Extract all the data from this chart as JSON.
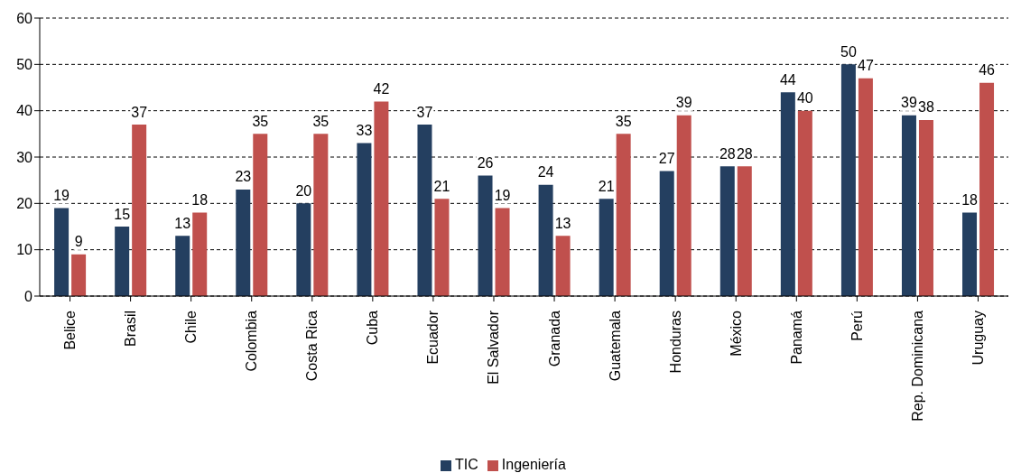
{
  "chart_data": {
    "type": "bar",
    "categories": [
      "Belice",
      "Brasil",
      "Chile",
      "Colombia",
      "Costa Rica",
      "Cuba",
      "Ecuador",
      "El Salvador",
      "Granada",
      "Guatemala",
      "Honduras",
      "México",
      "Panamá",
      "Perú",
      "Rep. Dominicana",
      "Uruguay"
    ],
    "series": [
      {
        "name": "TIC",
        "color": "#243f60",
        "values": [
          19,
          15,
          13,
          23,
          20,
          33,
          37,
          26,
          24,
          21,
          27,
          28,
          44,
          50,
          39,
          18
        ]
      },
      {
        "name": "Ingeniería",
        "color": "#c0504d",
        "values": [
          9,
          37,
          18,
          35,
          35,
          42,
          21,
          19,
          13,
          35,
          39,
          28,
          40,
          47,
          38,
          46
        ]
      }
    ],
    "ylim": [
      0,
      60
    ],
    "yticks": [
      0,
      10,
      20,
      30,
      40,
      50,
      60
    ],
    "grid": "y",
    "legend": "bottom",
    "data_labels": true
  }
}
